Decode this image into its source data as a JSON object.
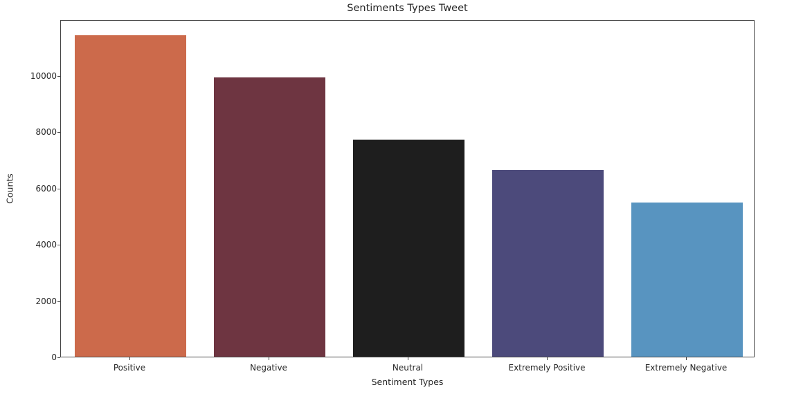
{
  "chart_data": {
    "type": "bar",
    "title": "Sentiments Types Tweet",
    "xlabel": "Sentiment Types",
    "ylabel": "Counts",
    "categories": [
      "Positive",
      "Negative",
      "Neutral",
      "Extremely Positive",
      "Extremely Negative"
    ],
    "values": [
      11422,
      9917,
      7713,
      6624,
      5481
    ],
    "colors": [
      "#cc6a4b",
      "#6e3541",
      "#1e1e1e",
      "#4c4a7b",
      "#5894c0"
    ],
    "ylim": [
      0,
      12000
    ],
    "yticks": [
      0,
      2000,
      4000,
      6000,
      8000,
      10000
    ],
    "grid": false,
    "legend": null
  }
}
